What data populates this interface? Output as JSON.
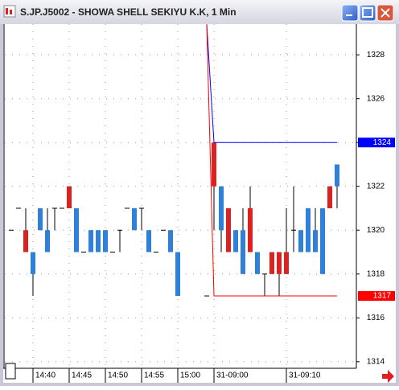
{
  "chart_data": {
    "type": "candlestick",
    "title": "S.JP.J5002 - SHOWA SHELL SEKIYU K.K, 1 Min",
    "categories": [
      null,
      null,
      null,
      "14:40",
      null,
      null,
      null,
      null,
      "14:45",
      null,
      null,
      null,
      null,
      "14:50",
      null,
      null,
      null,
      null,
      "14:55",
      null,
      null,
      null,
      null,
      "15:00",
      null,
      null,
      null,
      null,
      "31-09:00",
      null,
      null,
      null,
      null,
      null,
      null,
      null,
      null,
      null,
      "31-09:10",
      null,
      null,
      null,
      null,
      null,
      null,
      null
    ],
    "open": [
      1320,
      1321,
      1319,
      1319,
      1321,
      1320,
      1321,
      1321,
      1321,
      1321,
      1319,
      1320,
      1320,
      1320,
      1319,
      1320,
      1321,
      1321,
      1321,
      1320,
      1319,
      1320,
      1320,
      1319,
      null,
      null,
      null,
      1317,
      1322,
      1322,
      1319,
      1320,
      1320,
      1319,
      1319,
      1318,
      1318,
      1318,
      1318,
      1320,
      1320,
      1321,
      1320,
      1321,
      1321,
      1323
    ],
    "high": [
      1320,
      1321,
      1321,
      1319,
      1321,
      1321,
      1321,
      1321,
      1322,
      1321,
      1319,
      1320,
      1320,
      1320,
      1319,
      1320,
      1321,
      1321,
      1321,
      1320,
      1319,
      1320,
      1320,
      1319,
      null,
      null,
      null,
      1317,
      1324,
      1322,
      1321,
      1320,
      1321,
      1322,
      1319,
      1318,
      1319,
      1319,
      1321,
      1322,
      1320,
      1321,
      1321,
      1321,
      1322,
      1323
    ],
    "low": [
      1320,
      1321,
      1319,
      1317,
      1320,
      1319,
      1320,
      1321,
      1321,
      1319,
      1319,
      1319,
      1319,
      1319,
      1319,
      1319,
      1321,
      1320,
      1320,
      1319,
      1319,
      1320,
      1319,
      1317,
      null,
      null,
      null,
      1317,
      1320,
      1319,
      1319,
      1319,
      1318,
      1319,
      1318,
      1317,
      1318,
      1317,
      1318,
      1319,
      1319,
      1319,
      1319,
      1318,
      1321,
      1321
    ],
    "close": [
      1320,
      1321,
      1320,
      1318,
      1320,
      1319,
      1321,
      1321,
      1322,
      1319,
      1319,
      1319,
      1319,
      1319,
      1319,
      1320,
      1321,
      1320,
      1321,
      1319,
      1319,
      1320,
      1319,
      1317,
      null,
      null,
      null,
      1317,
      1324,
      1320,
      1321,
      1319,
      1318,
      1321,
      1318,
      1318,
      1319,
      1319,
      1319,
      1320,
      1319,
      1319,
      1319,
      1318,
      1322,
      1322
    ],
    "up_color": "#dd2020",
    "down_color": "#2f80d8",
    "wick_color": "#000000",
    "levels": [
      {
        "value": 1324,
        "color": "#0000ff"
      },
      {
        "value": 1317,
        "color": "#ff0000"
      }
    ],
    "ylim": [
      1313.7,
      1329.4
    ],
    "yticks": [
      1314,
      1316,
      1318,
      1320,
      1322,
      1324,
      1326,
      1328
    ],
    "grid": true
  }
}
